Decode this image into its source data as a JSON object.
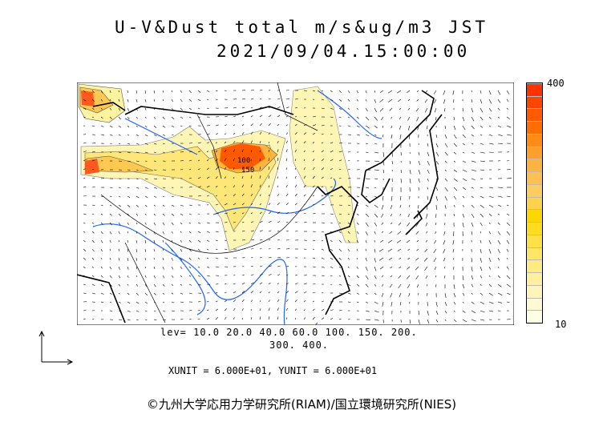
{
  "title": {
    "line1": "U-V&Dust total m/s&ug/m3 JST",
    "line2": "2021/09/04.15:00:00"
  },
  "colorbar": {
    "max_label": "400",
    "min_label": "10",
    "colors": [
      "#ffffe6",
      "#fffad2",
      "#fff5b9",
      "#fff0a0",
      "#ffeb82",
      "#ffe664",
      "#ffe046",
      "#ffdc1e",
      "#ffd700",
      "#ffd24b",
      "#ffcd5f",
      "#ffc050",
      "#ffb43c",
      "#ffa028",
      "#ff8c14",
      "#ff6e00",
      "#ff5a00",
      "#ff4600",
      "#ff3200"
    ]
  },
  "levels": {
    "line1": "lev= 10.0 20.0 40.0 60.0 100. 150. 200.",
    "line2": "300. 400."
  },
  "units": "XUNIT = 6.000E+01, YUNIT = 6.000E+01",
  "credit": "©九州大学応用力学研究所(RIAM)/国立環境研究所(NIES)",
  "map_labels": {
    "contour_a": "100",
    "contour_b": "150"
  }
}
